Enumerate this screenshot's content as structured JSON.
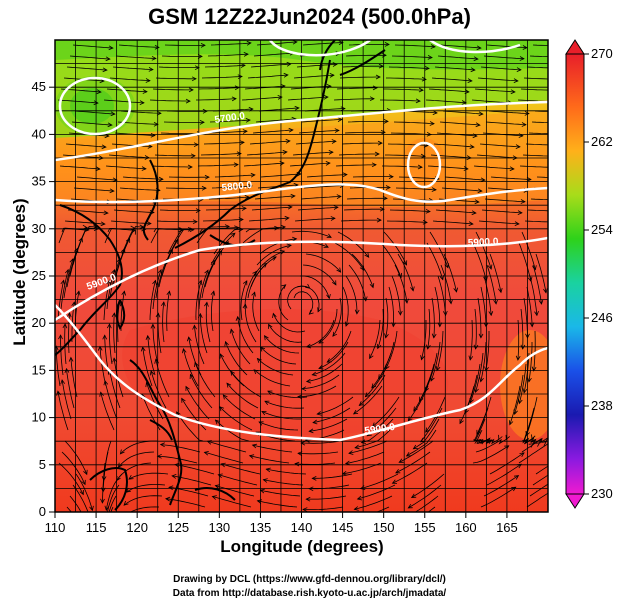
{
  "map": {
    "title": "GSM 12Z22Jun2024 (500.0hPa)",
    "x_label": "Longitude (degrees)",
    "y_label": "Latitude  (degrees)",
    "lon_range": [
      110,
      170
    ],
    "lat_range": [
      0,
      50
    ],
    "lon_ticks": [
      "110",
      "115",
      "120",
      "125",
      "130",
      "135",
      "140",
      "145",
      "150",
      "155",
      "160",
      "165"
    ],
    "lat_ticks": [
      "0",
      "5",
      "10",
      "15",
      "20",
      "25",
      "30",
      "35",
      "40",
      "45"
    ],
    "colorbar": {
      "range": [
        230,
        270
      ],
      "labels": [
        "270",
        "262",
        "254",
        "246",
        "238",
        "230"
      ],
      "colors": [
        "#e01f1f",
        "#ff8a1a",
        "#7ed11a",
        "#1fc7b0",
        "#1f1fd9",
        "#e01ff0"
      ]
    },
    "contours": [
      {
        "label": "5700.0"
      },
      {
        "label": "5800.0"
      },
      {
        "label": "5900.0"
      },
      {
        "label": "5900.0"
      },
      {
        "label": "5900.0"
      }
    ]
  },
  "credits": {
    "line1": "Drawing by DCL (https://www.gfd-dennou.org/library/dcl/)",
    "line2": "Data from http://database.rish.kyoto-u.ac.jp/arch/jmadata/"
  }
}
